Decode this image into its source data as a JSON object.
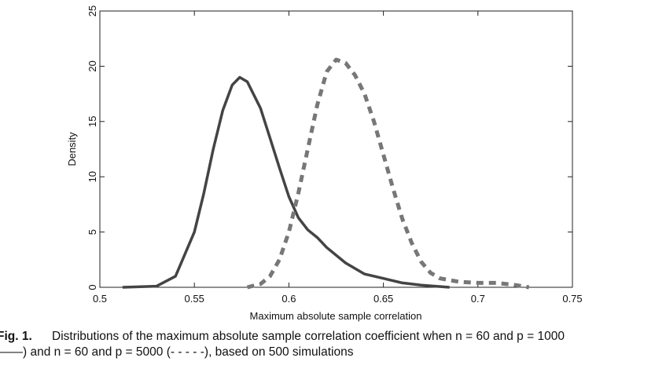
{
  "chart_data": {
    "type": "line",
    "xlabel": "Maximum absolute sample correlation",
    "ylabel": "Density",
    "xlim": [
      0.5,
      0.75
    ],
    "xticks": [
      0.5,
      0.55,
      0.6,
      0.65,
      0.7,
      0.75
    ],
    "ylim": [
      0,
      25
    ],
    "yticks": [
      0,
      5,
      10,
      15,
      20,
      25
    ],
    "series": [
      {
        "color": "#444444",
        "dash": false,
        "x": [
          0.512,
          0.53,
          0.54,
          0.55,
          0.555,
          0.56,
          0.565,
          0.57,
          0.574,
          0.578,
          0.585,
          0.59,
          0.595,
          0.6,
          0.605,
          0.61,
          0.615,
          0.62,
          0.63,
          0.64,
          0.65,
          0.66,
          0.67,
          0.685
        ],
        "values": [
          0,
          0.1,
          1,
          5,
          8.5,
          12.5,
          16,
          18.3,
          19,
          18.6,
          16.2,
          13.5,
          10.8,
          8.2,
          6.3,
          5.2,
          4.5,
          3.6,
          2.2,
          1.2,
          0.8,
          0.4,
          0.2,
          0
        ]
      },
      {
        "color": "#777777",
        "dash": true,
        "x": [
          0.578,
          0.585,
          0.59,
          0.595,
          0.6,
          0.605,
          0.61,
          0.615,
          0.62,
          0.625,
          0.63,
          0.635,
          0.64,
          0.645,
          0.65,
          0.655,
          0.66,
          0.665,
          0.67,
          0.675,
          0.68,
          0.69,
          0.7,
          0.71,
          0.72,
          0.727
        ],
        "values": [
          0,
          0.3,
          1,
          2.5,
          5,
          8.5,
          12.5,
          16.5,
          19.5,
          20.6,
          20.3,
          19.2,
          17.5,
          15,
          12,
          9,
          6.2,
          4,
          2.3,
          1.3,
          0.8,
          0.5,
          0.4,
          0.4,
          0.2,
          0
        ]
      }
    ]
  },
  "caption": {
    "label": "Fig. 1.",
    "line1": "Distributions of the maximum absolute sample correlation coefficient when n = 60 and p = 1000",
    "line2": "——) and n = 60 and p = 5000 (- - - - -), based on 500 simulations"
  }
}
